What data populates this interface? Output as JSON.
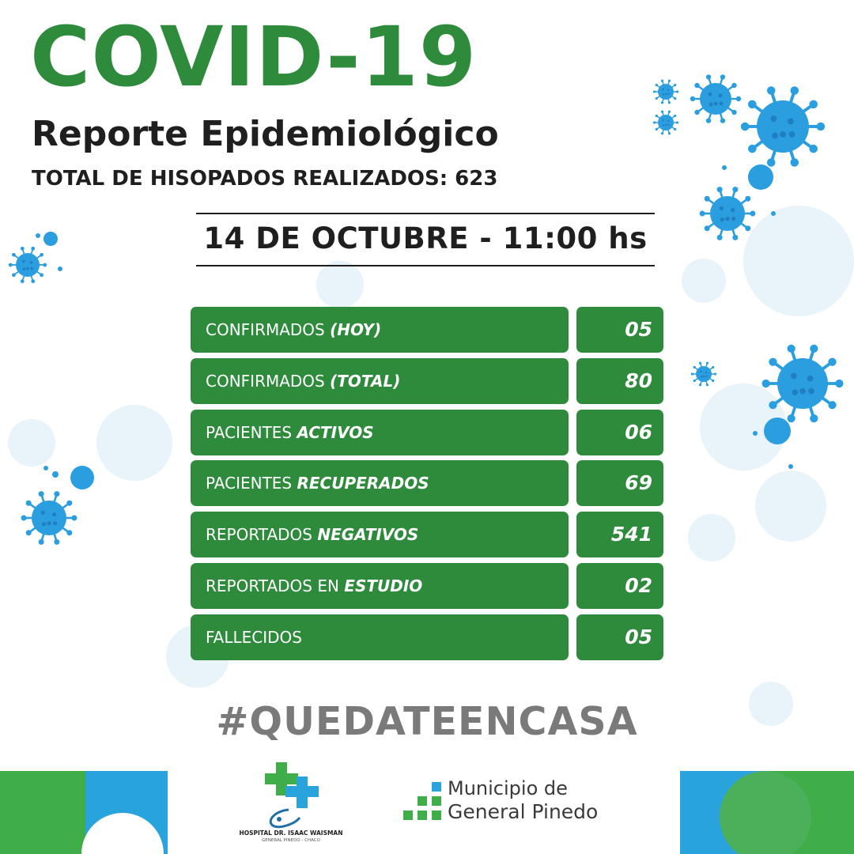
{
  "colors": {
    "brand_green": "#2e8b3c",
    "virus_blue": "#2b9ee0",
    "bubble_blue": "#e8f3fa",
    "text_dark": "#1f1f1f",
    "hashtag_gray": "#7a7a7a"
  },
  "header": {
    "title": "COVID-19",
    "subtitle": "Reporte Epidemiológico",
    "swabs": "TOTAL DE HISOPADOS REALIZADOS: 623"
  },
  "report_date": "14 DE OCTUBRE - 11:00 hs",
  "stats": [
    {
      "label_plain": "CONFIRMADOS ",
      "label_emphasis": "(HOY)",
      "label_suffix": "",
      "value": "05"
    },
    {
      "label_plain": "CONFIRMADOS ",
      "label_emphasis": "(TOTAL)",
      "label_suffix": "",
      "value": "80"
    },
    {
      "label_plain": "PACIENTES ",
      "label_emphasis": "ACTIVOS",
      "label_suffix": "",
      "value": "06"
    },
    {
      "label_plain": "PACIENTES ",
      "label_emphasis": "RECUPERADOS",
      "label_suffix": "",
      "value": "69"
    },
    {
      "label_plain": "REPORTADOS ",
      "label_emphasis": "NEGATIVOS",
      "label_suffix": "",
      "value": "541"
    },
    {
      "label_plain": "REPORTADOS EN ",
      "label_emphasis": "ESTUDIO",
      "label_suffix": "",
      "value": "02"
    },
    {
      "label_plain": "FALLECIDOS",
      "label_emphasis": "",
      "label_suffix": "",
      "value": "05"
    }
  ],
  "hashtag": "#QUEDATEENCASA",
  "footer": {
    "hospital_name": "HOSPITAL DR. ISAAC WAISMAN",
    "hospital_place": "GENERAL PINEDO - CHACO",
    "municipality_line1": "Municipio de",
    "municipality_line2": "General Pinedo"
  }
}
